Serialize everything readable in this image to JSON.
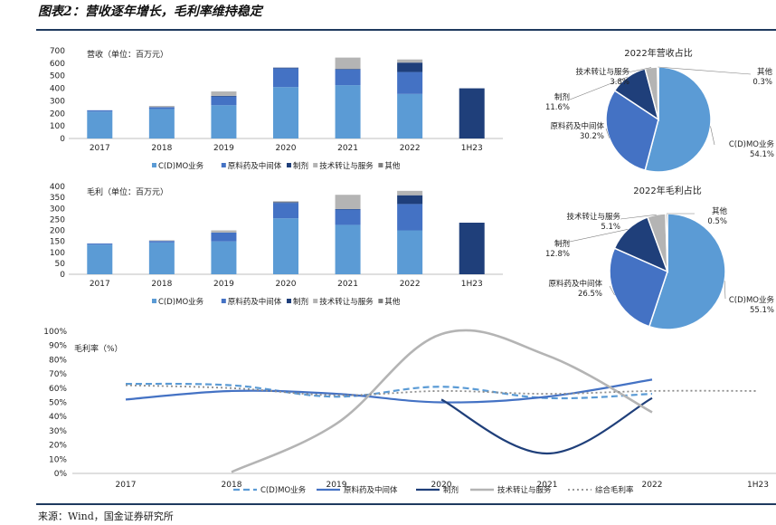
{
  "title": "图表2：营收逐年增长，毛利率维持稳定",
  "source": "来源：Wind，国金证券研究所",
  "colors": {
    "cdmo": "#5b9bd5",
    "api": "#4472c4",
    "prep": "#1f3f7a",
    "tech": "#b4b4b4",
    "other": "#7f7f7f"
  },
  "chart_data": [
    {
      "type": "bar",
      "stacked": true,
      "unit_label": "营收（单位：百万元）",
      "categories": [
        "2017",
        "2018",
        "2019",
        "2020",
        "2021",
        "2022",
        "1H23"
      ],
      "ylim": [
        0,
        700
      ],
      "yticks": [
        0,
        100,
        200,
        300,
        400,
        500,
        600,
        700
      ],
      "series": [
        {
          "name": "C(D)MO业务",
          "values": [
            215,
            235,
            265,
            410,
            425,
            355,
            0
          ]
        },
        {
          "name": "原料药及中间体",
          "values": [
            10,
            15,
            70,
            150,
            125,
            175,
            0
          ]
        },
        {
          "name": "制剂",
          "values": [
            0,
            0,
            5,
            5,
            5,
            75,
            400
          ]
        },
        {
          "name": "技术转让与服务",
          "values": [
            0,
            10,
            35,
            0,
            90,
            25,
            0
          ]
        },
        {
          "name": "其他",
          "values": [
            0,
            0,
            0,
            0,
            0,
            0,
            0
          ]
        }
      ],
      "legend": [
        "C(D)MO业务",
        "原料药及中间体",
        "制剂",
        "技术转让与服务",
        "其他"
      ]
    },
    {
      "type": "bar",
      "stacked": true,
      "unit_label": "毛利（单位：百万元）",
      "categories": [
        "2017",
        "2018",
        "2019",
        "2020",
        "2021",
        "2022",
        "1H23"
      ],
      "ylim": [
        0,
        400
      ],
      "yticks": [
        0,
        50,
        100,
        150,
        200,
        250,
        300,
        350,
        400
      ],
      "series": [
        {
          "name": "C(D)MO业务",
          "values": [
            135,
            145,
            150,
            255,
            225,
            200,
            0
          ]
        },
        {
          "name": "原料药及中间体",
          "values": [
            5,
            7,
            40,
            70,
            70,
            120,
            0
          ]
        },
        {
          "name": "制剂",
          "values": [
            0,
            0,
            0,
            3,
            2,
            40,
            235
          ]
        },
        {
          "name": "技术转让与服务",
          "values": [
            0,
            3,
            10,
            5,
            65,
            20,
            0
          ]
        },
        {
          "name": "其他",
          "values": [
            0,
            0,
            0,
            0,
            0,
            0,
            0
          ]
        }
      ],
      "legend": [
        "C(D)MO业务",
        "原料药及中间体",
        "制剂",
        "技术转让与服务",
        "其他"
      ]
    },
    {
      "type": "pie",
      "title": "2022年营收占比",
      "slices": [
        {
          "label": "C(D)MO业务",
          "value": 54.1,
          "text": "54.1%"
        },
        {
          "label": "原料药及中间体",
          "value": 30.2,
          "text": "30.2%"
        },
        {
          "label": "制剂",
          "value": 11.6,
          "text": "11.6%"
        },
        {
          "label": "技术转让与服务",
          "value": 3.8,
          "text": "3.8%"
        },
        {
          "label": "其他",
          "value": 0.3,
          "text": "0.3%"
        }
      ]
    },
    {
      "type": "pie",
      "title": "2022年毛利占比",
      "slices": [
        {
          "label": "C(D)MO业务",
          "value": 55.1,
          "text": "55.1%"
        },
        {
          "label": "原料药及中间体",
          "value": 26.5,
          "text": "26.5%"
        },
        {
          "label": "制剂",
          "value": 12.8,
          "text": "12.8%"
        },
        {
          "label": "技术转让与服务",
          "value": 5.1,
          "text": "5.1%"
        },
        {
          "label": "其他",
          "value": 0.5,
          "text": "0.5%"
        }
      ]
    },
    {
      "type": "line",
      "unit_label": "毛利率（%）",
      "categories": [
        "2017",
        "2018",
        "2019",
        "2020",
        "2021",
        "2022",
        "1H23"
      ],
      "ylim": [
        0,
        100
      ],
      "yticks": [
        "0%",
        "10%",
        "20%",
        "30%",
        "40%",
        "50%",
        "60%",
        "70%",
        "80%",
        "90%",
        "100%"
      ],
      "series": [
        {
          "name": "C(D)MO业务",
          "values": [
            63,
            62,
            54,
            61,
            53,
            56,
            null
          ]
        },
        {
          "name": "原料药及中间体",
          "values": [
            52,
            58,
            56,
            50,
            54,
            66,
            null
          ]
        },
        {
          "name": "制剂",
          "values": [
            null,
            null,
            null,
            52,
            14,
            53,
            null
          ]
        },
        {
          "name": "技术转让与服务",
          "values": [
            null,
            1,
            35,
            98,
            83,
            43,
            null
          ]
        },
        {
          "name": "综合毛利率",
          "values": [
            62,
            60,
            55,
            58,
            56,
            58,
            58
          ]
        }
      ]
    }
  ]
}
